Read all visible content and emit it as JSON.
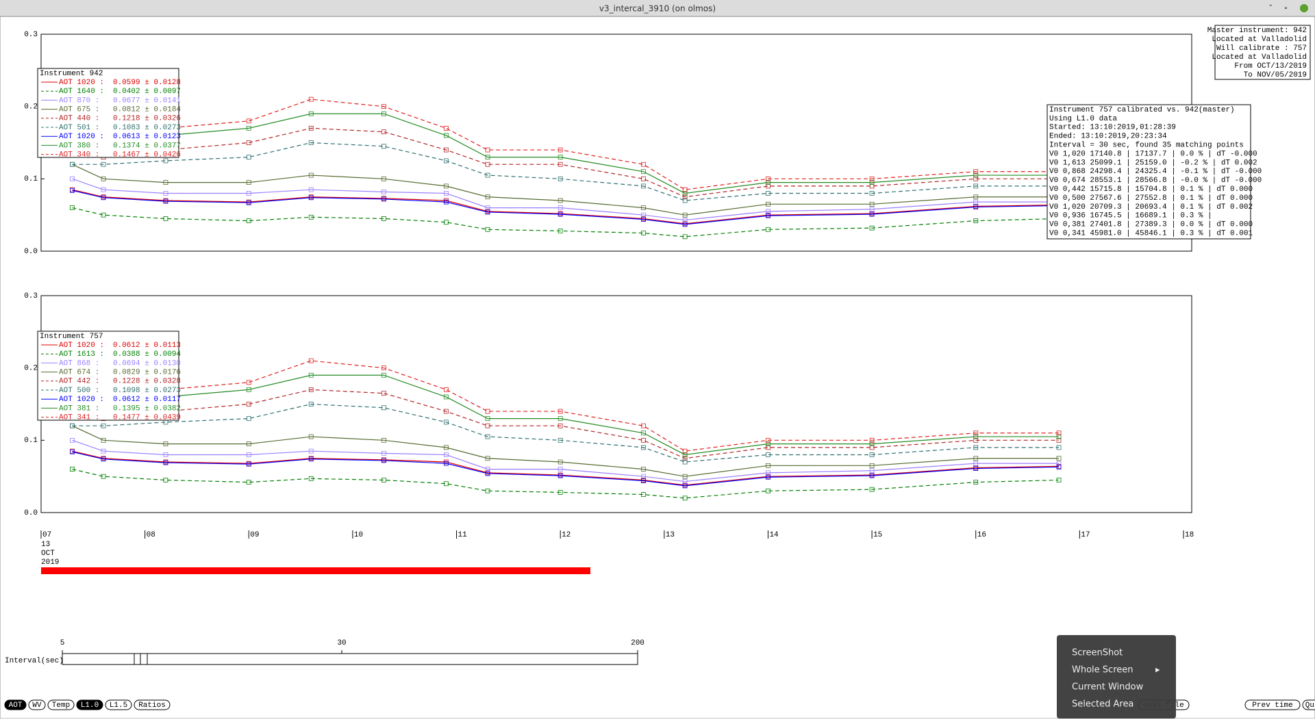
{
  "window_title": "v3_intercal_3910 (on olmos)",
  "chart_data": [
    {
      "type": "line",
      "legend_title": "Instrument 942",
      "x": [
        7.3,
        7.6,
        8.2,
        9.0,
        9.6,
        10.3,
        10.9,
        11.3,
        12.0,
        12.8,
        13.2,
        14.0,
        15.0,
        16.0,
        16.8
      ],
      "xlim": [
        7,
        18
      ],
      "ylim": [
        0,
        0.3
      ],
      "yticks": [
        {
          "value": 0,
          "label": "0.0"
        },
        0.1,
        0.2,
        0.3
      ],
      "series": [
        {
          "name": "AOT 1020 :",
          "stat": "0.0599 ± 0.0128",
          "color": "#e00000",
          "dashed": false,
          "values": [
            0.085,
            0.075,
            0.07,
            0.068,
            0.075,
            0.073,
            0.07,
            0.055,
            0.052,
            0.045,
            0.038,
            0.05,
            0.052,
            0.062,
            0.064
          ]
        },
        {
          "name": "AOT 1640 :",
          "stat": "0.0402 ± 0.0097",
          "color": "#008000",
          "dashed": true,
          "values": [
            0.06,
            0.05,
            0.045,
            0.042,
            0.047,
            0.045,
            0.04,
            0.03,
            0.028,
            0.025,
            0.02,
            0.03,
            0.032,
            0.042,
            0.045
          ]
        },
        {
          "name": "AOT 870 :",
          "stat": "0.0677 ± 0.0141",
          "color": "#9a7fff",
          "dashed": false,
          "values": [
            0.1,
            0.085,
            0.08,
            0.08,
            0.085,
            0.082,
            0.08,
            0.06,
            0.06,
            0.05,
            0.043,
            0.055,
            0.058,
            0.068,
            0.068
          ]
        },
        {
          "name": "AOT 675 :",
          "stat": "0.0812 ± 0.0184",
          "color": "#556b2f",
          "dashed": false,
          "values": [
            0.12,
            0.1,
            0.095,
            0.095,
            0.105,
            0.1,
            0.09,
            0.075,
            0.07,
            0.06,
            0.05,
            0.065,
            0.065,
            0.075,
            0.075
          ]
        },
        {
          "name": "AOT 440 :",
          "stat": "0.1218 ± 0.0326",
          "color": "#b22222",
          "dashed": true,
          "values": [
            0.14,
            0.13,
            0.14,
            0.15,
            0.17,
            0.165,
            0.14,
            0.12,
            0.12,
            0.1,
            0.075,
            0.09,
            0.09,
            0.1,
            0.1
          ]
        },
        {
          "name": "AOT 501 :",
          "stat": "0.1083 ± 0.0273",
          "color": "#2f6f6f",
          "dashed": true,
          "values": [
            0.12,
            0.12,
            0.125,
            0.13,
            0.15,
            0.145,
            0.125,
            0.105,
            0.1,
            0.09,
            0.07,
            0.08,
            0.08,
            0.09,
            0.09
          ]
        },
        {
          "name": "AOT 1020 :",
          "stat": "0.0613 ± 0.0123",
          "color": "#0000ff",
          "dashed": false,
          "values": [
            0.084,
            0.074,
            0.069,
            0.067,
            0.074,
            0.072,
            0.068,
            0.054,
            0.051,
            0.044,
            0.037,
            0.049,
            0.051,
            0.061,
            0.063
          ]
        },
        {
          "name": "AOT 380 :",
          "stat": "0.1374 ± 0.0377",
          "color": "#228b22",
          "dashed": false,
          "values": [
            0.15,
            0.15,
            0.16,
            0.17,
            0.19,
            0.19,
            0.16,
            0.13,
            0.13,
            0.11,
            0.08,
            0.095,
            0.095,
            0.105,
            0.105
          ]
        },
        {
          "name": "AOT 340 :",
          "stat": "0.1467 ± 0.0426",
          "color": "#e02020",
          "dashed": true,
          "values": [
            0.17,
            0.16,
            0.17,
            0.18,
            0.21,
            0.2,
            0.17,
            0.14,
            0.14,
            0.12,
            0.085,
            0.1,
            0.1,
            0.11,
            0.11
          ]
        }
      ]
    },
    {
      "type": "line",
      "legend_title": "Instrument 757",
      "x": [
        7.3,
        7.6,
        8.2,
        9.0,
        9.6,
        10.3,
        10.9,
        11.3,
        12.0,
        12.8,
        13.2,
        14.0,
        15.0,
        16.0,
        16.8
      ],
      "xlim": [
        7,
        18
      ],
      "ylim": [
        0,
        0.3
      ],
      "xticks": [
        {
          "value": 7,
          "label": "07"
        },
        {
          "value": 8,
          "label": "08"
        },
        {
          "value": 9,
          "label": "09"
        },
        10,
        11,
        12,
        13,
        14,
        15,
        16,
        17,
        18
      ],
      "yticks": [
        {
          "value": 0,
          "label": "0.0"
        },
        0.1,
        0.2,
        0.3
      ],
      "series": [
        {
          "name": "AOT 1020 :",
          "stat": "0.0612 ± 0.0113",
          "color": "#e00000",
          "dashed": false,
          "values": [
            0.085,
            0.075,
            0.07,
            0.068,
            0.075,
            0.073,
            0.07,
            0.055,
            0.052,
            0.045,
            0.038,
            0.05,
            0.052,
            0.062,
            0.064
          ]
        },
        {
          "name": "AOT 1613 :",
          "stat": "0.0388 ± 0.0094",
          "color": "#008000",
          "dashed": true,
          "values": [
            0.06,
            0.05,
            0.045,
            0.042,
            0.047,
            0.045,
            0.04,
            0.03,
            0.028,
            0.025,
            0.02,
            0.03,
            0.032,
            0.042,
            0.045
          ]
        },
        {
          "name": "AOT 868 :",
          "stat": "0.0694 ± 0.0130",
          "color": "#9a7fff",
          "dashed": false,
          "values": [
            0.1,
            0.085,
            0.08,
            0.08,
            0.085,
            0.082,
            0.08,
            0.06,
            0.06,
            0.05,
            0.043,
            0.055,
            0.058,
            0.068,
            0.068
          ]
        },
        {
          "name": "AOT 674 :",
          "stat": "0.0829 ± 0.0176",
          "color": "#556b2f",
          "dashed": false,
          "values": [
            0.12,
            0.1,
            0.095,
            0.095,
            0.105,
            0.1,
            0.09,
            0.075,
            0.07,
            0.06,
            0.05,
            0.065,
            0.065,
            0.075,
            0.075
          ]
        },
        {
          "name": "AOT 442 :",
          "stat": "0.1228 ± 0.0328",
          "color": "#b22222",
          "dashed": true,
          "values": [
            0.14,
            0.13,
            0.14,
            0.15,
            0.17,
            0.165,
            0.14,
            0.12,
            0.12,
            0.1,
            0.075,
            0.09,
            0.09,
            0.1,
            0.1
          ]
        },
        {
          "name": "AOT 500 :",
          "stat": "0.1098 ± 0.0273",
          "color": "#2f6f6f",
          "dashed": true,
          "values": [
            0.12,
            0.12,
            0.125,
            0.13,
            0.15,
            0.145,
            0.125,
            0.105,
            0.1,
            0.09,
            0.07,
            0.08,
            0.08,
            0.09,
            0.09
          ]
        },
        {
          "name": "AOT 1020 :",
          "stat": "0.0612 ± 0.0117",
          "color": "#0000ff",
          "dashed": false,
          "values": [
            0.084,
            0.074,
            0.069,
            0.067,
            0.074,
            0.072,
            0.068,
            0.054,
            0.051,
            0.044,
            0.037,
            0.049,
            0.051,
            0.061,
            0.063
          ]
        },
        {
          "name": "AOT 381 :",
          "stat": "0.1395 ± 0.0382",
          "color": "#228b22",
          "dashed": false,
          "values": [
            0.15,
            0.15,
            0.16,
            0.17,
            0.19,
            0.19,
            0.16,
            0.13,
            0.13,
            0.11,
            0.08,
            0.095,
            0.095,
            0.105,
            0.105
          ]
        },
        {
          "name": "AOT 341 :",
          "stat": "0.1477 ± 0.0439",
          "color": "#e02020",
          "dashed": true,
          "values": [
            0.17,
            0.16,
            0.17,
            0.18,
            0.21,
            0.2,
            0.17,
            0.14,
            0.14,
            0.12,
            0.085,
            0.1,
            0.1,
            0.11,
            0.11
          ]
        }
      ]
    }
  ],
  "date_labels": [
    "13",
    "OCT",
    "2019"
  ],
  "master_info": [
    "Master instrument: 942",
    "Located at Valladolid",
    "Will calibrate   : 757",
    "Located at Valladolid",
    "From OCT/13/2019",
    "To NOV/05/2019"
  ],
  "calibration_info": [
    "Instrument 757 calibrated vs. 942(master)",
    "Using L1.0 data",
    "Started: 13:10:2019,01:28:39",
    "Ended: 13:10:2019,20:23:34",
    "Interval = 30 sec, found 35 matching points",
    "V0 1,020  17140.8 | 17137.7 |  0.0 % | dT -0.000",
    "V0 1,613  25099.1 | 25159.0 | -0.2 % | dT 0.002",
    "V0 0,868  24298.4 | 24325.4 | -0.1 % | dT -0.000",
    "V0 0,674  28553.1 | 28566.8 | -0.0 % | dT -0.000",
    "V0 0,442  15715.8 | 15704.8 |  0.1 % | dT 0.000",
    "V0 0,500  27567.6 | 27552.8 |  0.1 % | dT 0.000",
    "V0 1,020  20709.3 | 20693.4 |  0.1 % | dT 0.002",
    "V0 0,936  16745.5 | 16689.1 |  0.3 % |",
    "V0 0,381  27401.8 | 27389.3 |  0.0 % | dT 0.000",
    "V0 0,341  45981.0 | 45846.1 |  0.3 % | dT 0.001"
  ],
  "slider": {
    "label": "Interval(sec)",
    "log": true,
    "ticks": [
      5,
      30,
      200
    ]
  },
  "buttons_left": [
    "AOT",
    "WV",
    "Temp",
    "L1.0",
    "L1.5",
    "Ratios"
  ],
  "buttons_right": [
    "ocal file",
    "Prev time",
    "Quit"
  ],
  "context_menu": [
    "ScreenShot",
    "Whole Screen",
    "Current Window",
    "Selected Area"
  ]
}
